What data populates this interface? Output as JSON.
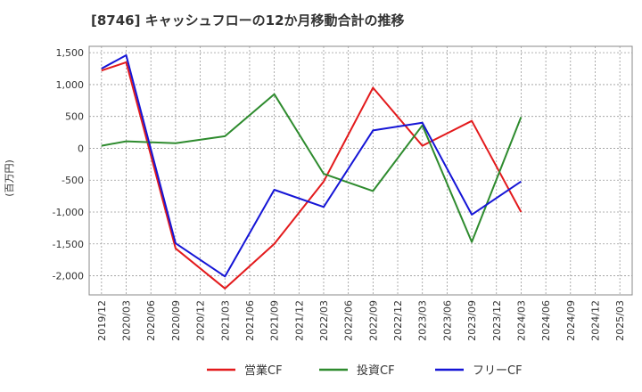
{
  "chart_data": {
    "type": "line",
    "title": "[8746]  キャッシュフローの12か月移動合計の推移",
    "ylabel": "(百万円)",
    "xlabel": "",
    "ylim": [
      -2300,
      1600
    ],
    "yticks": [
      1500,
      1000,
      500,
      0,
      -500,
      -1000,
      -1500,
      -2000
    ],
    "ytick_labels": [
      "1,500",
      "1,000",
      "500",
      "0",
      "-500",
      "-1,000",
      "-1,500",
      "-2,000"
    ],
    "x": [
      "2019/12",
      "2020/03",
      "2020/06",
      "2020/09",
      "2020/12",
      "2021/03",
      "2021/06",
      "2021/09",
      "2021/12",
      "2022/03",
      "2022/06",
      "2022/09",
      "2022/12",
      "2023/03",
      "2023/06",
      "2023/09",
      "2023/12",
      "2024/03",
      "2024/06",
      "2024/09",
      "2024/12",
      "2025/03"
    ],
    "grid": true,
    "legend_position": "bottom",
    "series": [
      {
        "name": "営業CF",
        "color": "#e31a1c",
        "values": [
          1220,
          1350,
          null,
          -1570,
          null,
          -2200,
          null,
          -1500,
          null,
          -520,
          null,
          950,
          null,
          40,
          null,
          430,
          null,
          -1000,
          null,
          null,
          null,
          null
        ]
      },
      {
        "name": "投資CF",
        "color": "#2e8b2e",
        "values": [
          40,
          110,
          null,
          80,
          null,
          190,
          null,
          850,
          null,
          -400,
          null,
          -670,
          null,
          360,
          null,
          -1470,
          null,
          490,
          null,
          null,
          null,
          null
        ]
      },
      {
        "name": "フリーCF",
        "color": "#1515d6",
        "values": [
          1250,
          1460,
          null,
          -1490,
          null,
          -2010,
          null,
          -650,
          null,
          -920,
          null,
          280,
          null,
          400,
          null,
          -1040,
          null,
          -520,
          null,
          null,
          null,
          null
        ]
      }
    ]
  }
}
